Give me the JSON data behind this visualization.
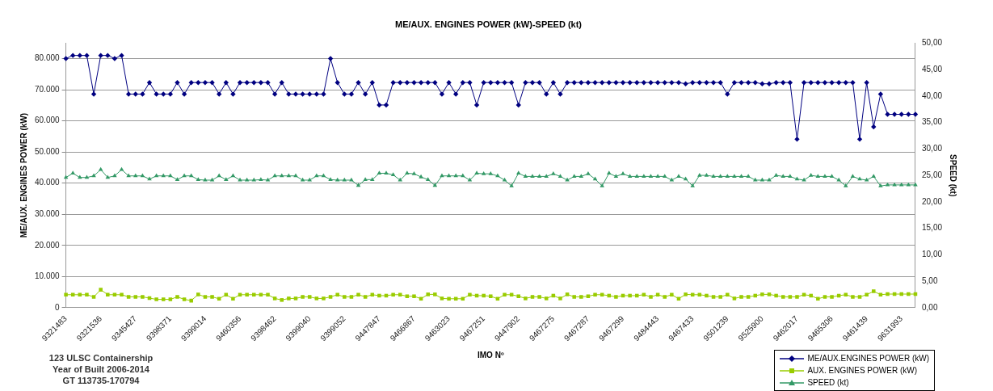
{
  "chart_data": {
    "type": "line",
    "title": "ME/AUX. ENGINES POWER (kW)-SPEED (kt)",
    "xlabel": "IMO Nº",
    "ylabel": "ME/AUX. ENGINES POWER (kW)",
    "y2label": "SPEED (kt)",
    "annotations": [
      "123 ULSC Containership",
      "Year of Built 2006-2014",
      "GT 113735-170794"
    ],
    "categories": [
      "9321483",
      null,
      null,
      null,
      null,
      "9321536",
      null,
      null,
      null,
      null,
      "9345427",
      null,
      null,
      null,
      null,
      "9398371",
      null,
      null,
      null,
      null,
      "9399014",
      null,
      null,
      null,
      null,
      "9460356",
      null,
      null,
      null,
      null,
      "9398462",
      null,
      null,
      null,
      null,
      "9399040",
      null,
      null,
      null,
      null,
      "9399052",
      null,
      null,
      null,
      null,
      "9447847",
      null,
      null,
      null,
      null,
      "9466867",
      null,
      null,
      null,
      null,
      "9463023",
      null,
      null,
      null,
      null,
      "9467251",
      null,
      null,
      null,
      null,
      "9447902",
      null,
      null,
      null,
      null,
      "9467275",
      null,
      null,
      null,
      null,
      "9467287",
      null,
      null,
      null,
      null,
      "9467299",
      null,
      null,
      null,
      null,
      "9484443",
      null,
      null,
      null,
      null,
      "9467433",
      null,
      null,
      null,
      null,
      "9501239",
      null,
      null,
      null,
      null,
      "9525900",
      null,
      null,
      null,
      null,
      "9462017",
      null,
      null,
      null,
      null,
      "9465306",
      null,
      null,
      null,
      null,
      "9461439",
      null,
      null,
      null,
      null,
      "9631993",
      null,
      null
    ],
    "series": [
      {
        "name": "ME/AUX.ENGINES POWER (kW)",
        "color": "#000080",
        "marker": "diamond",
        "values": [
          80000,
          81000,
          81000,
          81000,
          68600,
          81000,
          81000,
          80000,
          81000,
          68600,
          68600,
          68600,
          72300,
          68600,
          68600,
          68600,
          72300,
          68600,
          72300,
          72300,
          72300,
          72300,
          68600,
          72300,
          68600,
          72300,
          72300,
          72300,
          72300,
          72300,
          68600,
          72300,
          68600,
          68600,
          68600,
          68600,
          68600,
          68600,
          80000,
          72300,
          68600,
          68600,
          72300,
          68600,
          72300,
          65100,
          65100,
          72300,
          72300,
          72300,
          72300,
          72300,
          72300,
          72300,
          68600,
          72300,
          68600,
          72300,
          72300,
          65100,
          72300,
          72300,
          72300,
          72300,
          72300,
          65100,
          72300,
          72300,
          72300,
          68600,
          72300,
          68600,
          72300,
          72300,
          72300,
          72300,
          72300,
          72300,
          72300,
          72300,
          72300,
          72300,
          72300,
          72300,
          72300,
          72300,
          72300,
          72300,
          72300,
          71900,
          72300,
          72300,
          72300,
          72300,
          72300,
          68600,
          72300,
          72300,
          72300,
          72300,
          71900,
          71900,
          72300,
          72300,
          72300,
          54100,
          72300,
          72300,
          72300,
          72300,
          72300,
          72300,
          72300,
          72300,
          54100,
          72300,
          58100,
          68600,
          62100,
          62100,
          62100,
          62100,
          62100
        ]
      },
      {
        "name": "AUX. ENGINES POWER (kW)",
        "color": "#99cc00",
        "marker": "square",
        "values": [
          4200,
          4200,
          4200,
          4200,
          3500,
          5800,
          4200,
          4200,
          4200,
          3500,
          3500,
          3500,
          3100,
          2700,
          2700,
          2700,
          3500,
          2700,
          2300,
          4300,
          3500,
          3500,
          2900,
          4200,
          2900,
          4200,
          4200,
          4200,
          4200,
          4200,
          3000,
          2500,
          3000,
          3000,
          3500,
          3500,
          3000,
          3000,
          3500,
          4200,
          3500,
          3500,
          4200,
          3500,
          4200,
          3900,
          3900,
          4200,
          4200,
          3700,
          3700,
          2900,
          4300,
          4300,
          3000,
          2900,
          2900,
          2900,
          4200,
          3900,
          3900,
          3700,
          2900,
          4200,
          4200,
          3700,
          3000,
          3500,
          3500,
          3000,
          3900,
          3000,
          4300,
          3500,
          3500,
          3700,
          4200,
          4200,
          3900,
          3500,
          3900,
          3900,
          3900,
          4200,
          3500,
          4200,
          3500,
          4200,
          2900,
          4300,
          4200,
          4200,
          3900,
          3500,
          3500,
          4200,
          3000,
          3500,
          3500,
          3900,
          4300,
          4300,
          3900,
          3500,
          3500,
          3500,
          4200,
          3900,
          2900,
          3500,
          3500,
          3900,
          4200,
          3500,
          3500,
          4200,
          5300,
          4200,
          4400,
          4400,
          4400,
          4400,
          4400
        ]
      },
      {
        "name": "SPEED (kt)",
        "color": "#339966",
        "marker": "triangle",
        "axis": "y2",
        "values": [
          24.6,
          25.4,
          24.6,
          24.6,
          24.9,
          26.1,
          24.6,
          24.9,
          26.1,
          24.9,
          24.9,
          24.9,
          24.3,
          24.9,
          24.9,
          24.9,
          24.2,
          24.9,
          24.9,
          24.2,
          24.1,
          24.1,
          24.9,
          24.2,
          24.9,
          24.1,
          24.1,
          24.1,
          24.2,
          24.1,
          24.9,
          24.9,
          24.9,
          24.9,
          24.1,
          24.1,
          24.9,
          24.9,
          24.2,
          24.1,
          24.1,
          24.1,
          23.1,
          24.2,
          24.2,
          25.4,
          25.4,
          25.1,
          24.1,
          25.4,
          25.3,
          24.7,
          24.2,
          23.1,
          24.9,
          24.9,
          24.9,
          24.9,
          24.1,
          25.4,
          25.3,
          25.3,
          24.9,
          24.1,
          23.0,
          25.4,
          24.8,
          24.8,
          24.8,
          24.8,
          25.3,
          24.8,
          24.1,
          24.8,
          24.8,
          25.3,
          24.3,
          23.0,
          25.4,
          24.8,
          25.3,
          24.8,
          24.8,
          24.8,
          24.8,
          24.8,
          24.8,
          24.1,
          24.8,
          24.3,
          23.0,
          25.0,
          25.0,
          24.8,
          24.8,
          24.8,
          24.8,
          24.8,
          24.8,
          24.1,
          24.1,
          24.1,
          25.0,
          24.8,
          24.8,
          24.3,
          24.1,
          25.0,
          24.8,
          24.8,
          24.8,
          24.1,
          23.0,
          24.8,
          24.3,
          24.1,
          24.8,
          23.0,
          23.2,
          23.2,
          23.2,
          23.2,
          23.2
        ]
      }
    ],
    "ylim": [
      0,
      85000
    ],
    "yticks": [
      0,
      {
        "value": 10000,
        "label": "10.000"
      },
      {
        "value": 20000,
        "label": "20.000"
      },
      {
        "value": 30000,
        "label": "30.000"
      },
      {
        "value": 40000,
        "label": "40.000"
      },
      {
        "value": 50000,
        "label": "50.000"
      },
      {
        "value": 60000,
        "label": "60.000"
      },
      {
        "value": 70000,
        "label": "70.000"
      },
      {
        "value": 80000,
        "label": "80.000"
      }
    ],
    "y2lim": [
      0,
      50
    ],
    "y2ticks": [
      {
        "value": 0,
        "label": "0,00"
      },
      {
        "value": 5,
        "label": "5,00"
      },
      {
        "value": 10,
        "label": "10,00"
      },
      {
        "value": 15,
        "label": "15,00"
      },
      {
        "value": 20,
        "label": "20,00"
      },
      {
        "value": 25,
        "label": "25,00"
      },
      {
        "value": 30,
        "label": "30,00"
      },
      {
        "value": 35,
        "label": "35,00"
      },
      {
        "value": 40,
        "label": "40,00"
      },
      {
        "value": 45,
        "label": "45,00"
      },
      {
        "value": 50,
        "label": "50,00"
      }
    ],
    "grid": "y",
    "legend": "bottom right"
  }
}
